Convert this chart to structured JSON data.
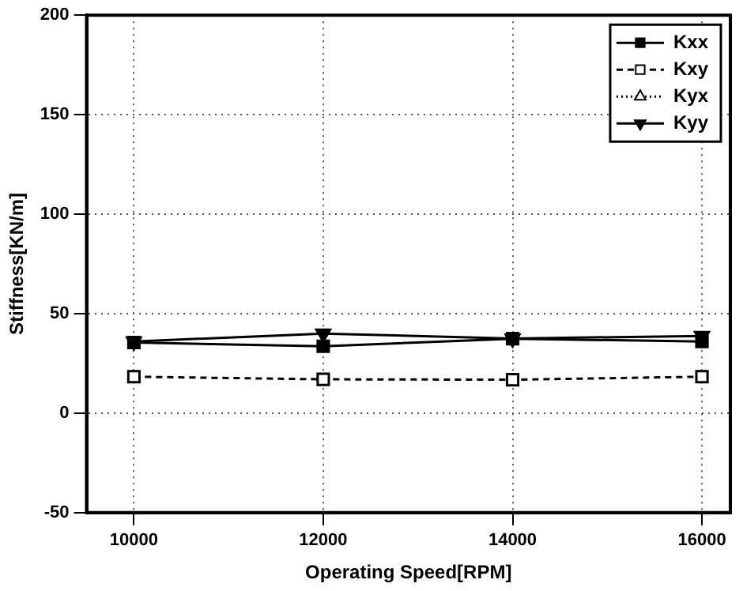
{
  "chart_data": {
    "type": "line",
    "xlabel": "Operating Speed[RPM]",
    "ylabel": "Stiffness[KN/m]",
    "x": [
      10000,
      12000,
      14000,
      16000
    ],
    "xlim": [
      9500,
      16300
    ],
    "xticks": [
      10000,
      12000,
      14000,
      16000
    ],
    "ylim": [
      -50,
      200
    ],
    "yticks": [
      -50,
      0,
      50,
      100,
      150,
      200
    ],
    "grid": true,
    "legend": "top right",
    "series": [
      {
        "name": "Kxx",
        "color": "#000000",
        "marker": "square",
        "line_style": "solid",
        "values": [
          35.5,
          33.6,
          37.4,
          36
        ]
      },
      {
        "name": "Kxy",
        "color": "#000000",
        "marker": "square",
        "line_style": "dashed",
        "values": [
          18.3,
          17,
          16.8,
          18.3
        ]
      },
      {
        "name": "Kyx",
        "color": "#000000",
        "marker": "triangle",
        "line_style": "dotted",
        "values": [
          null,
          null,
          null,
          null
        ]
      },
      {
        "name": "Kyy",
        "color": "#000000",
        "marker": "triangle-down",
        "line_style": "solid",
        "values": [
          36,
          40,
          37.5,
          38.8
        ]
      }
    ]
  }
}
